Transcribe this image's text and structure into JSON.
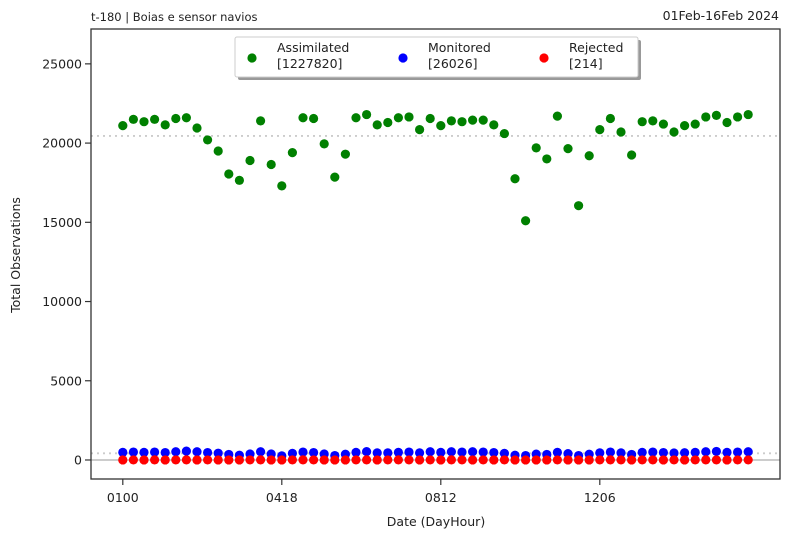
{
  "header": {
    "left_title": "t-180  |  Boias e sensor navios",
    "right_title": "01Feb-16Feb 2024"
  },
  "chart_data": {
    "type": "scatter",
    "title": "t-180  |  Boias e sensor navios",
    "subtitle": "01Feb-16Feb 2024",
    "xlabel": "Date (DayHour)",
    "ylabel": "Total Observations",
    "ylim": [
      -1200,
      27200
    ],
    "xlim": [
      -3,
      62
    ],
    "y_ticks": [
      0,
      5000,
      10000,
      15000,
      20000,
      25000
    ],
    "y_tick_labels": [
      "0",
      "5000",
      "10000",
      "15000",
      "20000",
      "25000"
    ],
    "x_ticks": [
      0,
      15,
      30,
      45
    ],
    "x_tick_labels": [
      "0100",
      "0418",
      "0812",
      "1206"
    ],
    "reference_lines": [
      {
        "y": 20450,
        "style": "dotted",
        "color": "#cccccc"
      },
      {
        "y": 420,
        "style": "dotted",
        "color": "#cccccc"
      },
      {
        "y": 0,
        "style": "solid",
        "color": "#cccccc"
      }
    ],
    "legend": {
      "placement": "top-center",
      "entries": [
        {
          "label": "Assimilated",
          "count": "[1227820]",
          "color": "#008000"
        },
        {
          "label": "Monitored",
          "count": "[26026]",
          "color": "#0000ff"
        },
        {
          "label": "Rejected",
          "count": "[214]",
          "color": "#ff0000"
        }
      ]
    },
    "series": [
      {
        "name": "Assimilated",
        "color": "#008000",
        "values": [
          21100,
          21500,
          21350,
          21500,
          21150,
          21550,
          21600,
          20950,
          20200,
          19500,
          18050,
          17650,
          18900,
          21400,
          18650,
          17300,
          19400,
          21600,
          21550,
          19950,
          17850,
          19300,
          21600,
          21800,
          21150,
          21300,
          21600,
          21650,
          20850,
          21550,
          21100,
          21400,
          21350,
          21450,
          21450,
          21150,
          20600,
          17750,
          15100,
          19700,
          19000,
          21700,
          19650,
          16050,
          19200,
          20850,
          21550,
          20700,
          19250,
          21350,
          21400,
          21200,
          20700,
          21100,
          21200,
          21650,
          21750,
          21300,
          21650,
          21800
        ]
      },
      {
        "name": "Monitored",
        "color": "#0000ff",
        "values": [
          480,
          500,
          480,
          500,
          470,
          520,
          560,
          520,
          470,
          430,
          350,
          300,
          380,
          520,
          380,
          260,
          420,
          500,
          470,
          380,
          280,
          360,
          480,
          530,
          450,
          450,
          480,
          500,
          450,
          520,
          480,
          520,
          500,
          520,
          500,
          470,
          420,
          300,
          280,
          370,
          350,
          480,
          400,
          280,
          360,
          450,
          500,
          450,
          350,
          480,
          500,
          470,
          440,
          460,
          480,
          520,
          540,
          480,
          500,
          520
        ]
      },
      {
        "name": "Rejected",
        "color": "#ff0000",
        "values": [
          3,
          4,
          3,
          5,
          3,
          4,
          6,
          3,
          4,
          2,
          3,
          2,
          4,
          5,
          3,
          2,
          4,
          5,
          4,
          3,
          2,
          3,
          4,
          5,
          3,
          4,
          5,
          4,
          3,
          4,
          3,
          5,
          4,
          3,
          4,
          3,
          4,
          2,
          2,
          3,
          3,
          4,
          3,
          2,
          3,
          4,
          5,
          4,
          3,
          4,
          4,
          3,
          4,
          3,
          4,
          5,
          4,
          3,
          4,
          4
        ]
      }
    ]
  }
}
